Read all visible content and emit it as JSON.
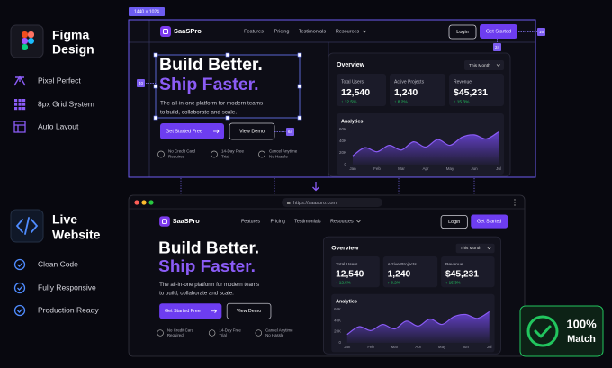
{
  "size_label": "1440 × 1024",
  "figma": {
    "title_lines": [
      "Figma",
      "Design"
    ],
    "features": [
      "Pixel Perfect",
      "8px Grid System",
      "Auto Layout"
    ]
  },
  "live": {
    "title_lines": [
      "Live",
      "Website"
    ],
    "features": [
      "Clean Code",
      "Fully Responsive",
      "Production Ready"
    ]
  },
  "spacing": [
    "40",
    "64",
    "16",
    "24"
  ],
  "url": "https://saaspro.com",
  "site": {
    "logo": "SaaSPro",
    "nav": [
      "Features",
      "Pricing",
      "Testimonials",
      "Resources"
    ],
    "login": "Login",
    "cta": "Get Started",
    "hero": [
      "Build Better.",
      "Ship Faster."
    ],
    "subtitle": [
      "The all-in-one platform for modern teams",
      "to build, collaborate and scale."
    ],
    "primary": "Get Started Free",
    "secondary": "View Demo",
    "perks": [
      [
        "No Credit Card",
        "Required"
      ],
      [
        "14-Day Free",
        "Trial"
      ],
      [
        "Cancel Anytime",
        "No Hassle"
      ]
    ],
    "dashboard": {
      "title": "Overview",
      "period": "This Month",
      "stats": [
        {
          "label": "Total Users",
          "value": "12,540",
          "change": "↑ 12.5%"
        },
        {
          "label": "Active Projects",
          "value": "1,240",
          "change": "↑ 8.2%"
        },
        {
          "label": "Revenue",
          "value": "$45,231",
          "change": "↑ 15.3%"
        }
      ],
      "analytics": {
        "title": "Analytics",
        "x": [
          0,
          0.5,
          1,
          1.5,
          2,
          2.5,
          3,
          3.5,
          4,
          4.5,
          5,
          5.5,
          6
        ],
        "values": [
          15000,
          29000,
          22000,
          33000,
          25000,
          39000,
          30000,
          43000,
          33000,
          47000,
          51000,
          44000,
          56000
        ],
        "xlim": [
          0,
          6
        ],
        "xticks": [
          {
            "value": 0,
            "label": "Jan"
          },
          {
            "value": 1,
            "label": "Feb"
          },
          {
            "value": 2,
            "label": "Mar"
          },
          {
            "value": 3,
            "label": "Apr"
          },
          {
            "value": 4,
            "label": "May"
          },
          {
            "value": 5,
            "label": "Jun"
          },
          {
            "value": 6,
            "label": "Jul"
          }
        ],
        "ylim": [
          0,
          60000
        ],
        "yticks": [
          0,
          {
            "value": 20000,
            "label": "20K"
          },
          {
            "value": 40000,
            "label": "40K"
          },
          {
            "value": 60000,
            "label": "60K"
          }
        ]
      }
    }
  },
  "badge": [
    "100%",
    "Match"
  ]
}
